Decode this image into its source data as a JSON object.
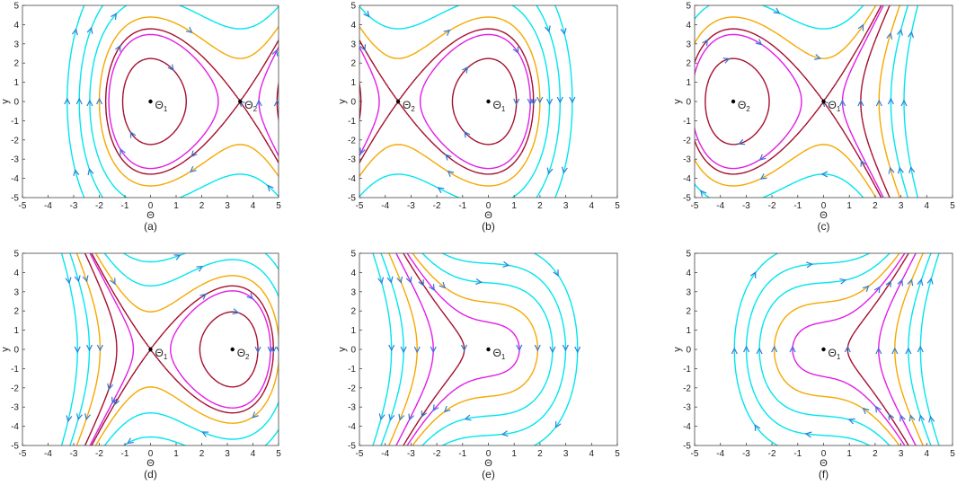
{
  "figure": {
    "colors": {
      "cyan": "#00E5EE",
      "orange": "#F5A800",
      "magenta": "#E21CE6",
      "darkred": "#A50E2D",
      "arrow": "#2F7BD8",
      "point": "#000000",
      "axis": "#444444"
    },
    "xlabel": "Θ",
    "ylabel": "y"
  },
  "chart_data": [
    {
      "type": "line",
      "panel_label": "(a)",
      "xlim": [
        -5,
        5
      ],
      "ylim": [
        -5,
        5
      ],
      "xticks": [
        "-5",
        "-4",
        "-3",
        "-2",
        "-1",
        "0",
        "1",
        "2",
        "3",
        "4",
        "5"
      ],
      "yticks": [
        "-5",
        "-4",
        "-3",
        "-2",
        "-1",
        "0",
        "1",
        "2",
        "3",
        "4",
        "5"
      ],
      "xlabel": "Θ",
      "ylabel": "y",
      "field": {
        "flip": 1,
        "A": 0,
        "eq": [
          0,
          3.5
        ]
      },
      "points": [
        {
          "label": "Θ",
          "sub": "1",
          "x": 0,
          "y": 0
        },
        {
          "label": "Θ",
          "sub": "2",
          "x": 3.5,
          "y": 0
        }
      ]
    },
    {
      "type": "line",
      "panel_label": "(b)",
      "xlim": [
        -5,
        5
      ],
      "ylim": [
        -5,
        5
      ],
      "xticks": [
        "-5",
        "-4",
        "-3",
        "-2",
        "-1",
        "0",
        "1",
        "2",
        "3",
        "4",
        "5"
      ],
      "yticks": [
        "-5",
        "-4",
        "-3",
        "-2",
        "-1",
        "0",
        "1",
        "2",
        "3",
        "4",
        "5"
      ],
      "xlabel": "Θ",
      "ylabel": "y",
      "field": {
        "flip": 1,
        "A": 0,
        "eq": [
          0,
          -3.5
        ]
      },
      "points": [
        {
          "label": "Θ",
          "sub": "1",
          "x": 0,
          "y": 0
        },
        {
          "label": "Θ",
          "sub": "2",
          "x": -3.5,
          "y": 0
        }
      ]
    },
    {
      "type": "line",
      "panel_label": "(c)",
      "xlim": [
        -5,
        5
      ],
      "ylim": [
        -5,
        5
      ],
      "xticks": [
        "-5",
        "-4",
        "-3",
        "-2",
        "-1",
        "0",
        "1",
        "2",
        "3",
        "4",
        "5"
      ],
      "yticks": [
        "-5",
        "-4",
        "-3",
        "-2",
        "-1",
        "0",
        "1",
        "2",
        "3",
        "4",
        "5"
      ],
      "xlabel": "Θ",
      "ylabel": "y",
      "field": {
        "flip": 1,
        "A": 0,
        "eq": [
          -3.5,
          0
        ]
      },
      "points": [
        {
          "label": "Θ",
          "sub": "2",
          "x": -3.5,
          "y": 0
        },
        {
          "label": "Θ",
          "sub": "1",
          "x": 0,
          "y": 0
        }
      ]
    },
    {
      "type": "line",
      "panel_label": "(d)",
      "xlim": [
        -5,
        5
      ],
      "ylim": [
        -5,
        5
      ],
      "xticks": [
        "-5",
        "-4",
        "-3",
        "-2",
        "-1",
        "0",
        "1",
        "2",
        "3",
        "4",
        "5"
      ],
      "yticks": [
        "-5",
        "-4",
        "-3",
        "-2",
        "-1",
        "0",
        "1",
        "2",
        "3",
        "4",
        "5"
      ],
      "xlabel": "Θ",
      "ylabel": "y",
      "field": {
        "flip": 1,
        "A": 0,
        "eq": [
          3.2,
          0
        ]
      },
      "points": [
        {
          "label": "Θ",
          "sub": "1",
          "x": 0,
          "y": 0
        },
        {
          "label": "Θ",
          "sub": "2",
          "x": 3.2,
          "y": 0
        }
      ]
    },
    {
      "type": "line",
      "panel_label": "(e)",
      "xlim": [
        -5,
        5
      ],
      "ylim": [
        -5,
        5
      ],
      "xticks": [
        "-5",
        "-4",
        "-3",
        "-2",
        "-1",
        "0",
        "1",
        "2",
        "3",
        "4",
        "5"
      ],
      "yticks": [
        "-5",
        "-4",
        "-3",
        "-2",
        "-1",
        "0",
        "1",
        "2",
        "3",
        "4",
        "5"
      ],
      "xlabel": "Θ",
      "ylabel": "y",
      "field": {
        "flip": 1,
        "A": 0.35,
        "eq": [
          0
        ]
      },
      "points": [
        {
          "label": "Θ",
          "sub": "1",
          "x": 0,
          "y": 0
        }
      ]
    },
    {
      "type": "line",
      "panel_label": "(f)",
      "xlim": [
        -5,
        5
      ],
      "ylim": [
        -5,
        5
      ],
      "xticks": [
        "-5",
        "-4",
        "-3",
        "-2",
        "-1",
        "0",
        "1",
        "2",
        "3",
        "4",
        "5"
      ],
      "yticks": [
        "-5",
        "-4",
        "-3",
        "-2",
        "-1",
        "0",
        "1",
        "2",
        "3",
        "4",
        "5"
      ],
      "xlabel": "Θ",
      "ylabel": "y",
      "field": {
        "flip": -1,
        "A": 0.35,
        "eq": [
          0
        ]
      },
      "points": [
        {
          "label": "Θ",
          "sub": "1",
          "x": 0,
          "y": 0
        }
      ]
    }
  ]
}
